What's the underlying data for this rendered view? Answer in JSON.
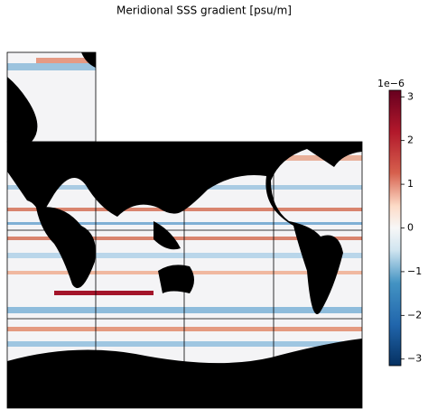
{
  "chart_data": {
    "type": "map",
    "title": "Meridional SSS gradient [psu/m]",
    "colorbar": {
      "offset_label": "1e−6",
      "lim": [
        -3.15,
        3.15
      ],
      "ticks": [
        {
          "value": -3,
          "label": "−3"
        },
        {
          "value": -2,
          "label": "−2"
        },
        {
          "value": -1,
          "label": "−1"
        },
        0,
        1,
        2,
        3
      ]
    }
  }
}
